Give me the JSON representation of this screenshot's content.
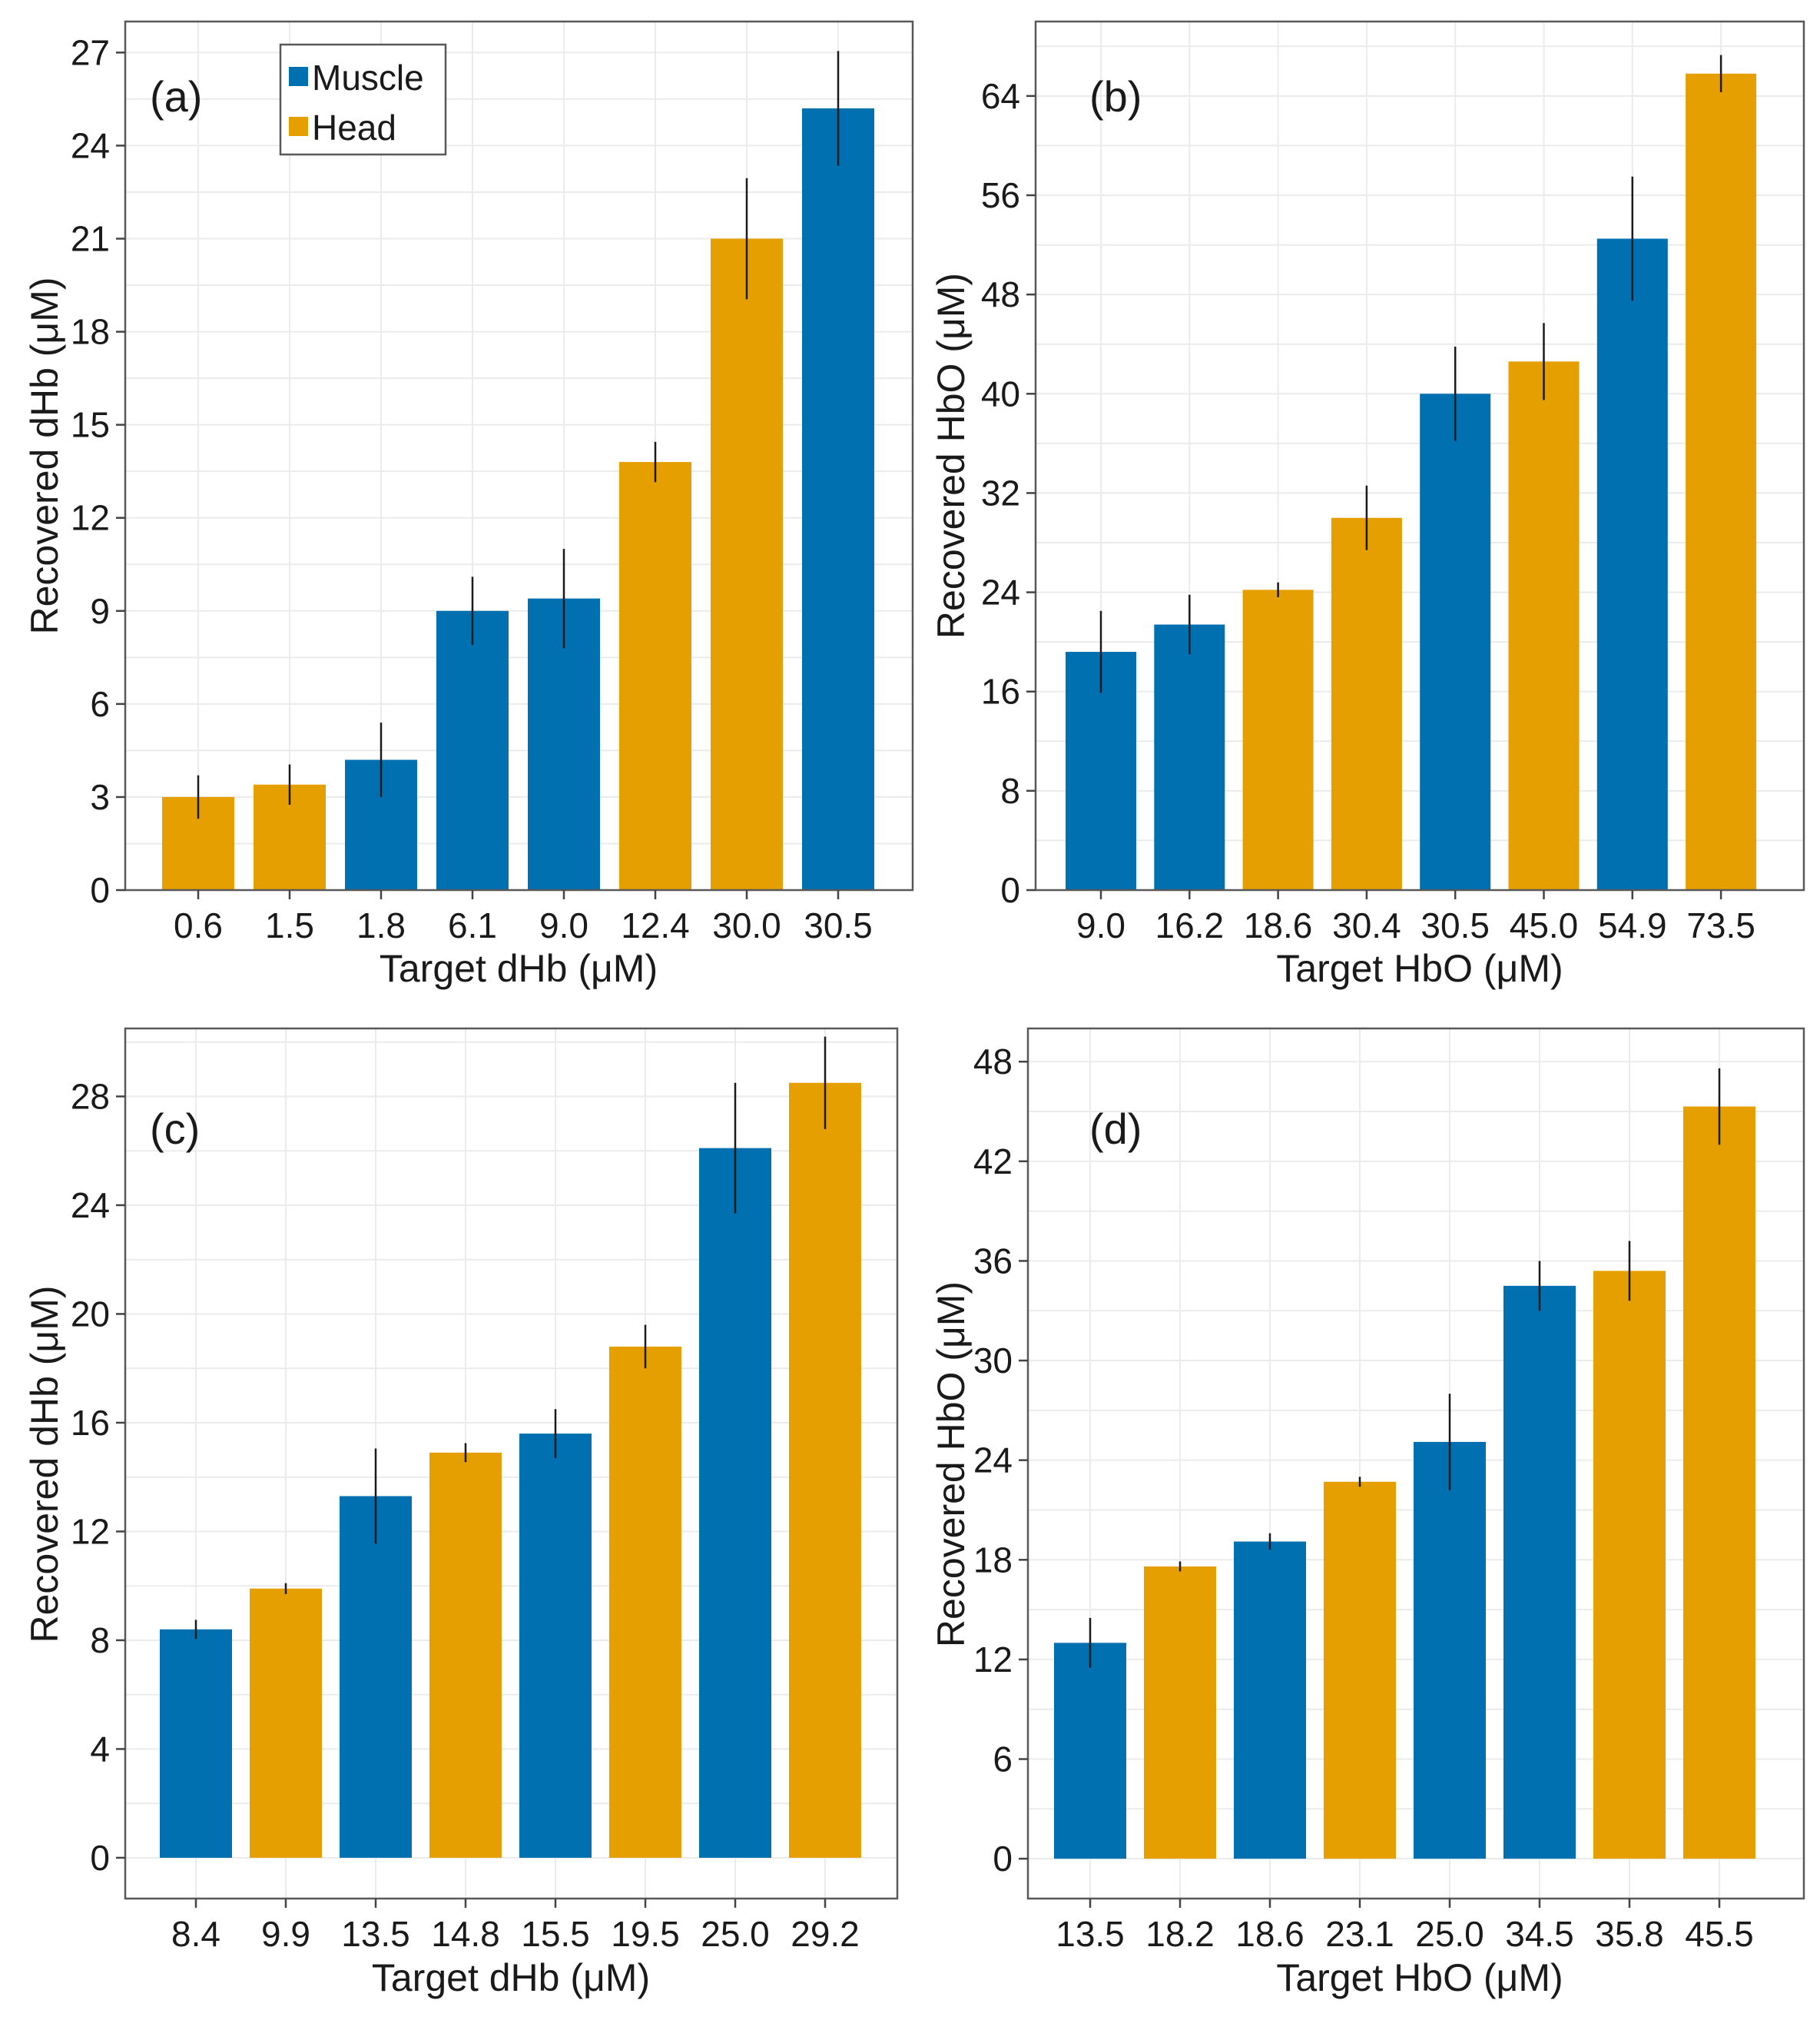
{
  "colors": {
    "Muscle": "#0170B1",
    "Head": "#E69F00"
  },
  "legend": [
    {
      "label": "Muscle",
      "color": "#0170B1"
    },
    {
      "label": "Head",
      "color": "#E69F00"
    }
  ],
  "chart_data": [
    {
      "type": "bar",
      "panel": "(a)",
      "xlabel": "Target dHb (μM)",
      "ylabel": "Recovered dHb (μM)",
      "ylim": [
        0,
        28
      ],
      "yticks": [
        0,
        3,
        6,
        9,
        12,
        15,
        18,
        21,
        24,
        27
      ],
      "categories": [
        "0.6",
        "1.5",
        "1.8",
        "6.1",
        "9.0",
        "12.4",
        "30.0",
        "30.5"
      ],
      "values": [
        3.0,
        3.4,
        4.2,
        9.0,
        9.4,
        13.8,
        21.0,
        25.2
      ],
      "errors": [
        0.7,
        0.65,
        1.2,
        1.1,
        1.6,
        0.65,
        1.95,
        1.85
      ],
      "groups": [
        "Head",
        "Head",
        "Muscle",
        "Muscle",
        "Muscle",
        "Head",
        "Head",
        "Muscle"
      ],
      "legend_position": "top-left"
    },
    {
      "type": "bar",
      "panel": "(b)",
      "xlabel": "Target HbO (μM)",
      "ylabel": "Recovered HbO (μM)",
      "ylim": [
        0,
        70
      ],
      "yticks": [
        0,
        8,
        16,
        24,
        32,
        40,
        48,
        56,
        64
      ],
      "categories": [
        "9.0",
        "16.2",
        "18.6",
        "30.4",
        "30.5",
        "45.0",
        "54.9",
        "73.5"
      ],
      "values": [
        19.2,
        21.4,
        24.2,
        30.0,
        40.0,
        42.6,
        52.5,
        65.8
      ],
      "errors": [
        3.3,
        2.4,
        0.6,
        2.6,
        3.8,
        3.1,
        5.0,
        1.5
      ],
      "groups": [
        "Muscle",
        "Muscle",
        "Head",
        "Head",
        "Muscle",
        "Head",
        "Muscle",
        "Head"
      ]
    },
    {
      "type": "bar",
      "panel": "(c)",
      "xlabel": "Target dHb (μM)",
      "ylabel": "Recovered dHb (μM)",
      "ylim": [
        -1.5,
        30.5
      ],
      "yticks": [
        0,
        4,
        8,
        12,
        16,
        20,
        24,
        28
      ],
      "categories": [
        "8.4",
        "9.9",
        "13.5",
        "14.8",
        "15.5",
        "19.5",
        "25.0",
        "29.2"
      ],
      "values": [
        8.4,
        9.9,
        13.3,
        14.9,
        15.6,
        18.8,
        26.1,
        28.5
      ],
      "errors": [
        0.35,
        0.2,
        1.75,
        0.35,
        0.9,
        0.8,
        2.4,
        1.7
      ],
      "groups": [
        "Muscle",
        "Head",
        "Muscle",
        "Head",
        "Muscle",
        "Head",
        "Muscle",
        "Head"
      ]
    },
    {
      "type": "bar",
      "panel": "(d)",
      "xlabel": "Target HbO (μM)",
      "ylabel": "Recovered HbO (μM)",
      "ylim": [
        -2.4,
        50
      ],
      "yticks": [
        0,
        6,
        12,
        18,
        24,
        30,
        36,
        42,
        48
      ],
      "categories": [
        "13.5",
        "18.2",
        "18.6",
        "23.1",
        "25.0",
        "34.5",
        "35.8",
        "45.5"
      ],
      "values": [
        13.0,
        17.6,
        19.1,
        22.7,
        25.1,
        34.5,
        35.4,
        45.3
      ],
      "errors": [
        1.5,
        0.3,
        0.5,
        0.3,
        2.9,
        1.5,
        1.8,
        2.3
      ],
      "groups": [
        "Muscle",
        "Head",
        "Muscle",
        "Head",
        "Muscle",
        "Muscle",
        "Head",
        "Head"
      ]
    }
  ]
}
